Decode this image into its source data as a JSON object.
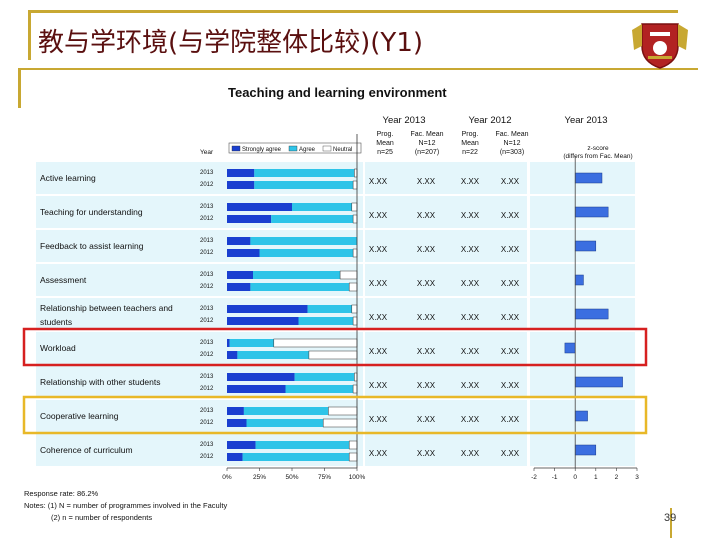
{
  "slide_title": "教与学环境(与学院整体比较)(Y1)",
  "page_number": "39",
  "colors": {
    "strongly_agree": "#1a3fd0",
    "agree": "#2ec4e8",
    "neutral": "#ffffff",
    "z_bar": "#3b6ee0",
    "row_band": "#e4f6fb",
    "highlight_red": "#d62020",
    "highlight_gold": "#e8b828",
    "frame": "#c8a832"
  },
  "chart_data": {
    "type": "bar",
    "title": "Teaching and learning environment",
    "column_headers": {
      "year": "Year",
      "year2013": "Year 2013",
      "year2012": "Year 2012",
      "prog_mean_2013": [
        "Prog.",
        "Mean",
        "n=25"
      ],
      "fac_mean_2013": [
        "Fac. Mean",
        "N=12",
        "(n=207)"
      ],
      "prog_mean_2012": [
        "Prog.",
        "Mean",
        "n=22"
      ],
      "fac_mean_2012": [
        "Fac. Mean",
        "N=12",
        "(n=303)"
      ],
      "z_year": "Year 2013",
      "z_label": [
        "z-score",
        "(differs from Fac. Mean)"
      ]
    },
    "legend": [
      "Strongly agree",
      "Agree",
      "Neutral"
    ],
    "x_axis_ticks": [
      "0%",
      "25%",
      "50%",
      "75%",
      "100%"
    ],
    "z_axis_ticks": [
      "-2",
      "-1",
      "0",
      "1",
      "2",
      "3"
    ],
    "z_range": [
      -2,
      3
    ],
    "placeholder_value": "X.XX",
    "categories": [
      {
        "label": "Active learning",
        "label2": "",
        "y2013": {
          "sa": 21,
          "a": 77,
          "n": 2
        },
        "y2012": {
          "sa": 21,
          "a": 76,
          "n": 3
        },
        "z": 1.3
      },
      {
        "label": "Teaching for understanding",
        "label2": "",
        "y2013": {
          "sa": 50,
          "a": 46,
          "n": 4
        },
        "y2012": {
          "sa": 34,
          "a": 63,
          "n": 3
        },
        "z": 1.6
      },
      {
        "label": "Feedback to assist learning",
        "label2": "",
        "y2013": {
          "sa": 18,
          "a": 82,
          "n": 0
        },
        "y2012": {
          "sa": 25,
          "a": 72,
          "n": 3
        },
        "z": 1.0
      },
      {
        "label": "Assessment",
        "label2": "",
        "y2013": {
          "sa": 20,
          "a": 67,
          "n": 13
        },
        "y2012": {
          "sa": 18,
          "a": 76,
          "n": 6
        },
        "z": 0.4
      },
      {
        "label": "Relationship between teachers and",
        "label2": "students",
        "y2013": {
          "sa": 62,
          "a": 34,
          "n": 4
        },
        "y2012": {
          "sa": 55,
          "a": 42,
          "n": 3
        },
        "z": 1.6
      },
      {
        "label": "Workload",
        "label2": "",
        "y2013": {
          "sa": 2,
          "a": 34,
          "n": 64
        },
        "y2012": {
          "sa": 8,
          "a": 55,
          "n": 37
        },
        "z": -0.5
      },
      {
        "label": "Relationship with other students",
        "label2": "",
        "y2013": {
          "sa": 52,
          "a": 46,
          "n": 2
        },
        "y2012": {
          "sa": 45,
          "a": 52,
          "n": 3
        },
        "z": 2.3
      },
      {
        "label": "Cooperative learning",
        "label2": "",
        "y2013": {
          "sa": 13,
          "a": 65,
          "n": 22
        },
        "y2012": {
          "sa": 15,
          "a": 59,
          "n": 26
        },
        "z": 0.6
      },
      {
        "label": "Coherence of curriculum",
        "label2": "",
        "y2013": {
          "sa": 22,
          "a": 72,
          "n": 6
        },
        "y2012": {
          "sa": 12,
          "a": 82,
          "n": 6
        },
        "z": 1.0
      }
    ],
    "row_years": [
      "2013",
      "2012"
    ],
    "highlighted_rows": {
      "red": "Workload",
      "gold": "Cooperative learning"
    }
  },
  "footer": {
    "response_rate": "Response rate: 86.2%",
    "notes1": "Notes: (1) N = number of programmes involved in the Faculty",
    "notes2": "(2) n = number of respondents"
  }
}
